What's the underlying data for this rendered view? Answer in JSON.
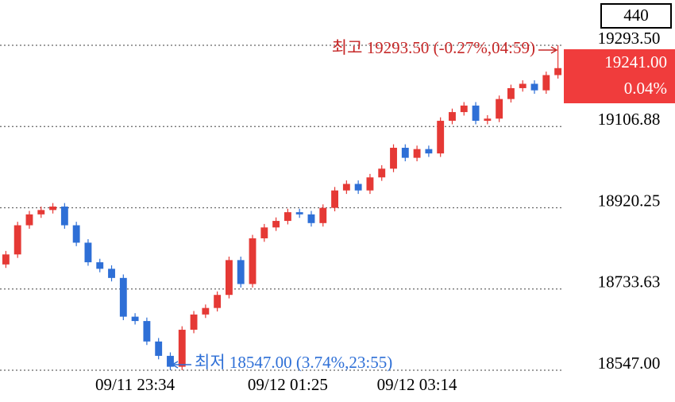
{
  "chart_data": {
    "type": "candlestick",
    "title_box": "440",
    "last_price": "19241.00",
    "last_change": "0.04%",
    "high_annotation": "최고 19293.50 (-0.27%,04:59)",
    "low_annotation": "최저 18547.00 (3.74%,23:55)",
    "up_color": "#e53935",
    "down_color": "#2e6fd6",
    "categories": [
      null,
      null,
      null,
      null,
      null,
      null,
      null,
      null,
      null,
      null,
      null,
      "09/11 23:34",
      null,
      null,
      null,
      null,
      null,
      null,
      null,
      null,
      null,
      null,
      null,
      null,
      "09/12 01:25",
      null,
      null,
      null,
      null,
      null,
      null,
      null,
      null,
      null,
      null,
      "09/12 03:14",
      null,
      null,
      null,
      null,
      null,
      null,
      null,
      null,
      null,
      null,
      null,
      null
    ],
    "open": [
      18790,
      18813,
      18880,
      18905,
      18915,
      18923,
      18880,
      18840,
      18795,
      18780,
      18759,
      18670,
      18660,
      18613,
      18580,
      18555,
      18640,
      18675,
      18690,
      18720,
      18800,
      18745,
      18850,
      18875,
      18890,
      18910,
      18905,
      18885,
      18920,
      18960,
      18975,
      18960,
      18990,
      19010,
      19058,
      19035,
      19055,
      19045,
      19120,
      19140,
      19155,
      19120,
      19125,
      19170,
      19195,
      19205,
      19190,
      19225
    ],
    "high": [
      18821,
      18888,
      18913,
      18923,
      18931,
      18931,
      18888,
      18848,
      18803,
      18788,
      18767,
      18678,
      18668,
      18621,
      18588,
      18648,
      18683,
      18698,
      18728,
      18808,
      18808,
      18858,
      18883,
      18898,
      18918,
      18918,
      18913,
      18928,
      18968,
      18983,
      18983,
      18998,
      19018,
      19066,
      19066,
      19063,
      19063,
      19128,
      19148,
      19163,
      19163,
      19133,
      19178,
      19203,
      19213,
      19213,
      19233,
      19293.5
    ],
    "low": [
      18782,
      18805,
      18872,
      18897,
      18907,
      18872,
      18832,
      18787,
      18772,
      18751,
      18662,
      18652,
      18605,
      18572,
      18547,
      18547,
      18632,
      18667,
      18682,
      18712,
      18737,
      18737,
      18842,
      18867,
      18882,
      18897,
      18877,
      18877,
      18912,
      18952,
      18952,
      18952,
      18982,
      19002,
      19027,
      19027,
      19037,
      19037,
      19112,
      19132,
      19112,
      19112,
      19117,
      19162,
      19187,
      19182,
      19182,
      19217
    ],
    "close": [
      18813,
      18880,
      18905,
      18915,
      18923,
      18880,
      18840,
      18795,
      18780,
      18759,
      18670,
      18660,
      18613,
      18580,
      18555,
      18640,
      18675,
      18690,
      18720,
      18800,
      18745,
      18850,
      18875,
      18890,
      18910,
      18905,
      18885,
      18920,
      18960,
      18975,
      18960,
      18990,
      19010,
      19058,
      19035,
      19055,
      19045,
      19120,
      19140,
      19155,
      19120,
      19125,
      19170,
      19195,
      19205,
      19190,
      19225,
      19241
    ],
    "ylim": [
      18539.7,
      19397.5
    ],
    "yticks": [
      {
        "value": 19293.5,
        "label": "19293.50"
      },
      19106.88,
      18920.25,
      18733.63,
      {
        "value": 18547,
        "label": "18547.00"
      }
    ],
    "grid": true
  }
}
